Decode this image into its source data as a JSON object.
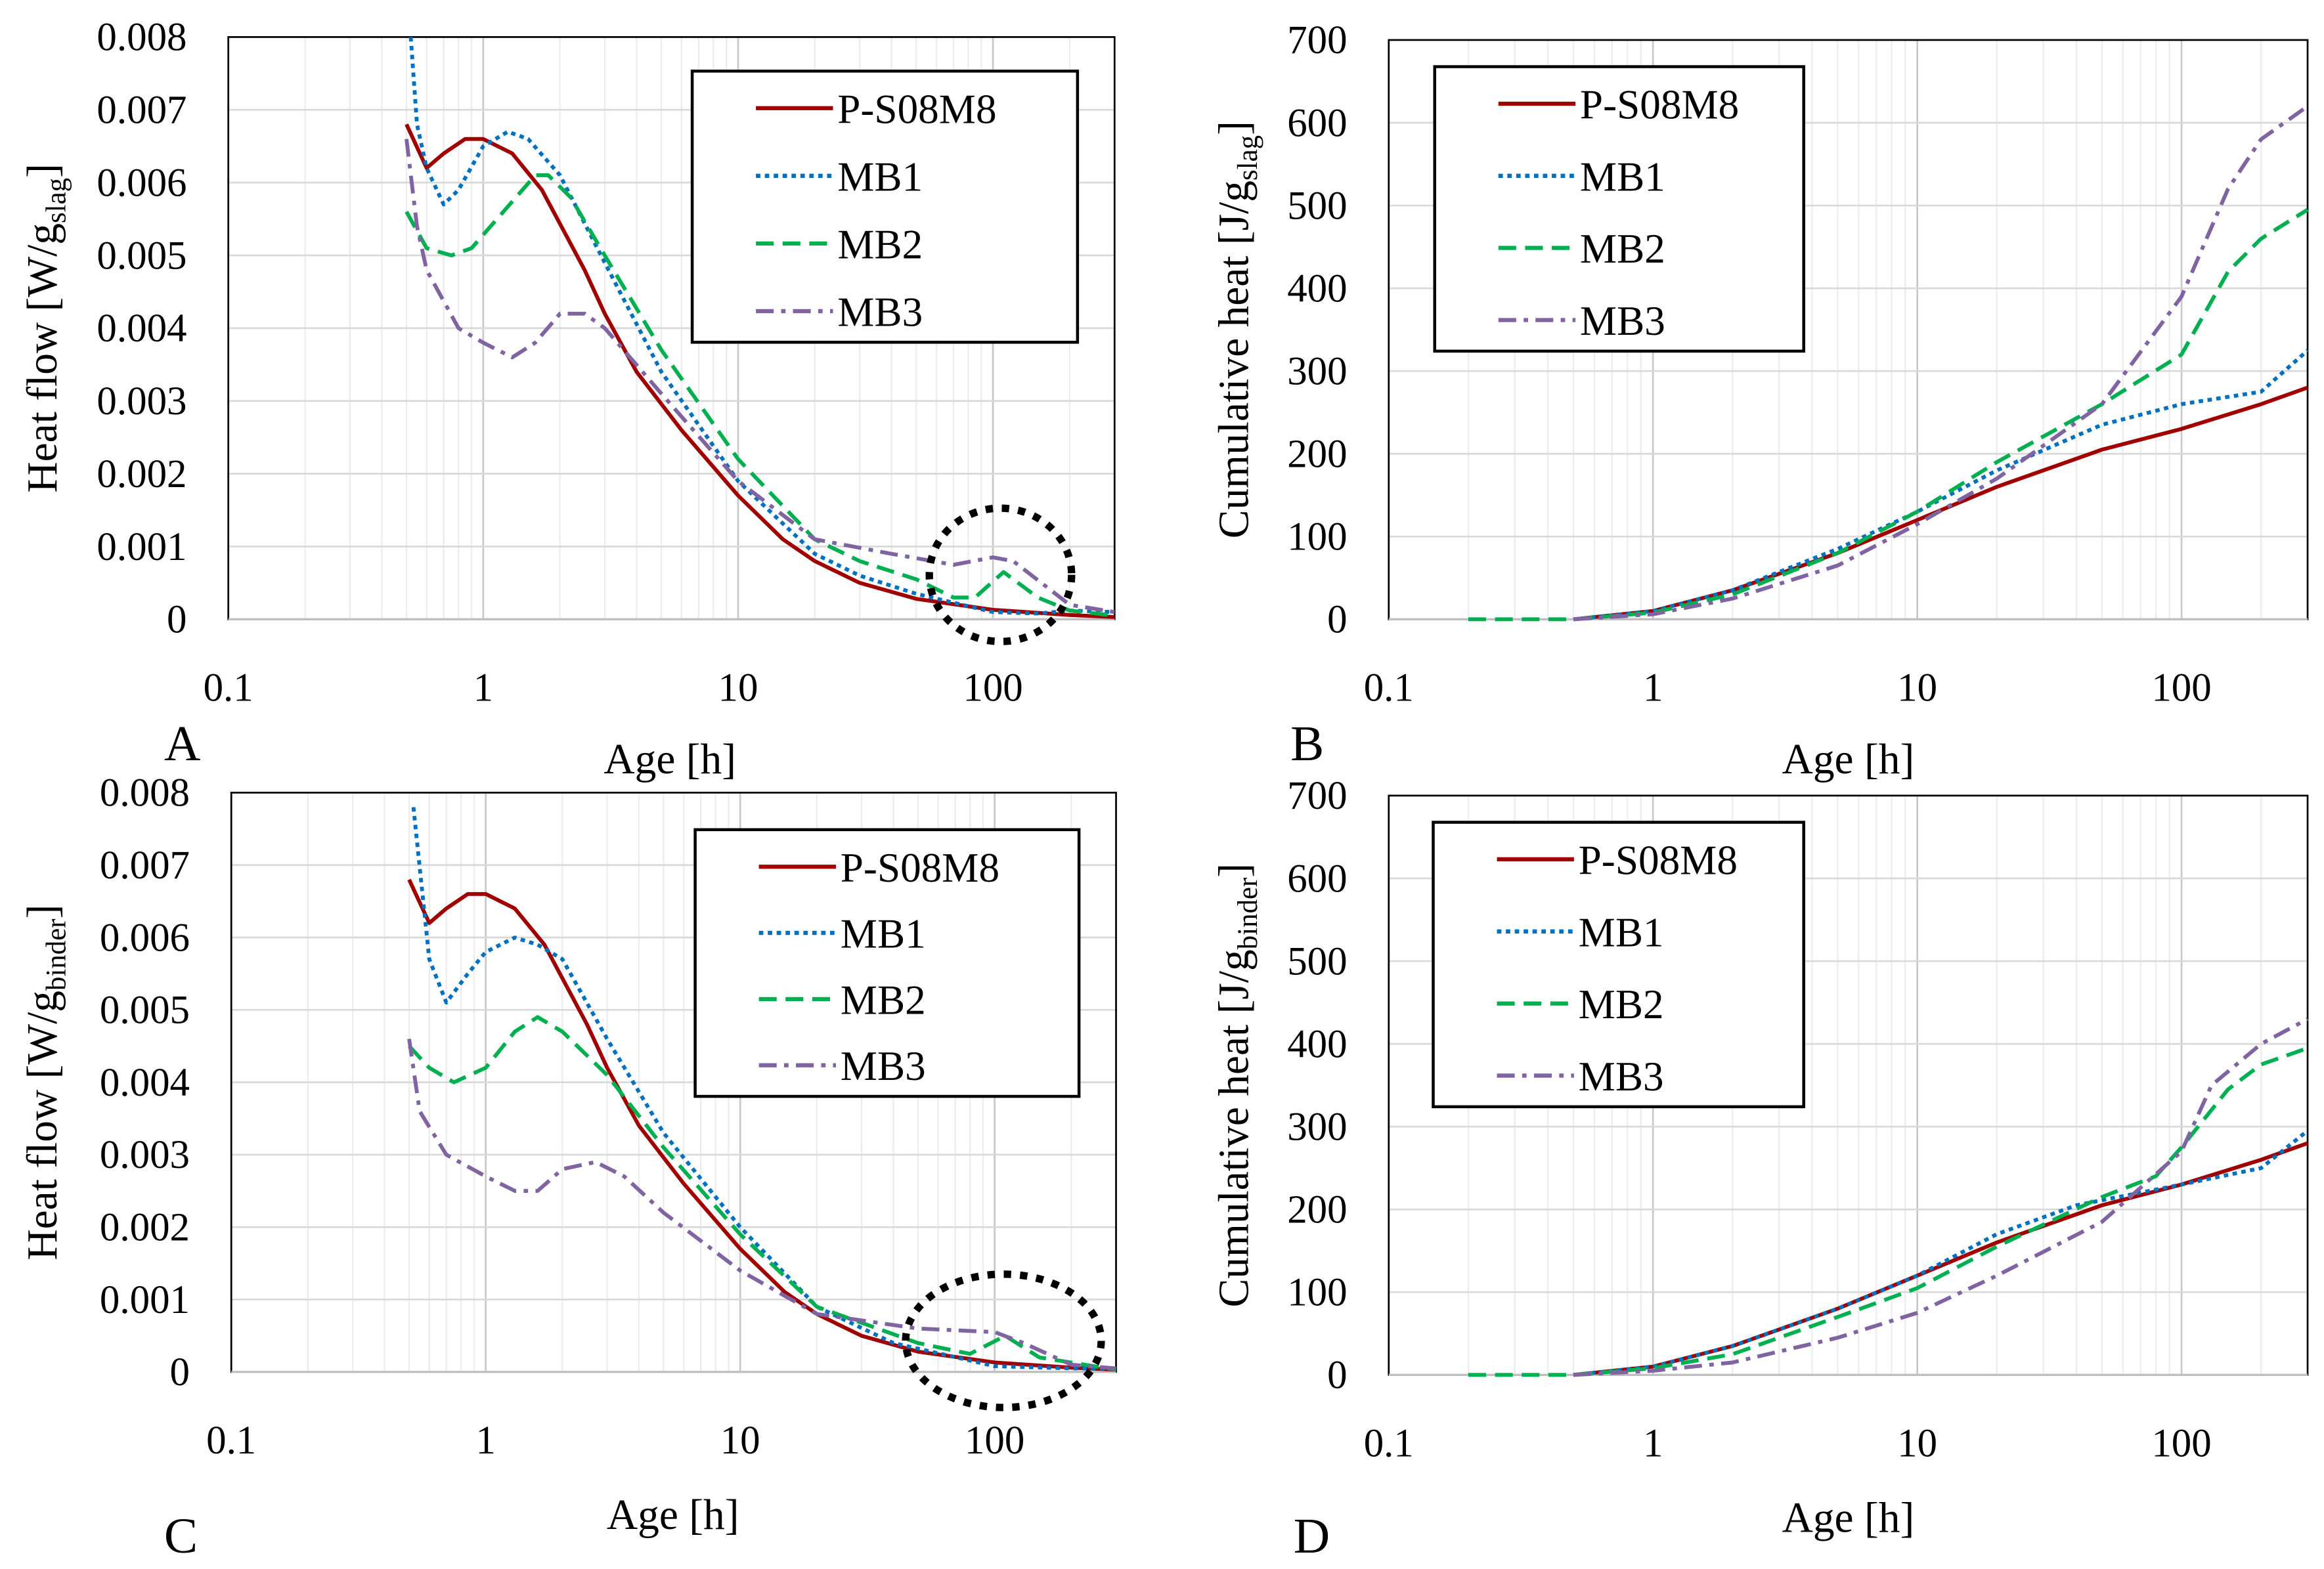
{
  "chart_data": [
    {
      "panel": "A",
      "type": "line",
      "xscale": "log",
      "xlabel": "Age [h]",
      "ylabel": {
        "prefix": "Heat flow [W/g",
        "sub": "slag",
        "suffix": "]"
      },
      "xlim": [
        0.1,
        300
      ],
      "ylim": [
        0,
        0.008
      ],
      "xticks": [
        "0.1",
        "1",
        "10",
        "100"
      ],
      "yticks": [
        "0",
        "0.001",
        "0.002",
        "0.003",
        "0.004",
        "0.005",
        "0.006",
        "0.007",
        "0.008"
      ],
      "legend_position": "top-right",
      "annotation": "dotted circle around ~100 h",
      "series": [
        {
          "name": "P-S08M8",
          "x": [
            0.5,
            0.6,
            0.7,
            0.85,
            1,
            1.3,
            1.7,
            2.5,
            3,
            4,
            6,
            10,
            15,
            20,
            30,
            50,
            100,
            200,
            300
          ],
          "y": [
            0.0068,
            0.0062,
            0.0064,
            0.0066,
            0.0066,
            0.0064,
            0.0059,
            0.0048,
            0.0042,
            0.0034,
            0.0026,
            0.0017,
            0.0011,
            0.0008,
            0.0005,
            0.00028,
            0.00013,
            6e-05,
            3e-05
          ]
        },
        {
          "name": "MB1",
          "x": [
            0.52,
            0.55,
            0.6,
            0.7,
            0.8,
            1,
            1.25,
            1.5,
            2,
            3,
            5,
            10,
            20,
            30,
            50,
            100,
            150,
            200,
            300
          ],
          "y": [
            0.008,
            0.0068,
            0.0062,
            0.0057,
            0.0059,
            0.0065,
            0.0067,
            0.0066,
            0.0061,
            0.0049,
            0.0034,
            0.0019,
            0.0009,
            0.0006,
            0.00035,
            0.0001,
            8e-05,
            0.00012,
            0.0001
          ]
        },
        {
          "name": "MB2",
          "x": [
            0.5,
            0.6,
            0.75,
            0.9,
            1.2,
            1.6,
            1.8,
            2.2,
            3,
            5,
            10,
            20,
            30,
            50,
            70,
            85,
            110,
            150,
            200,
            300
          ],
          "y": [
            0.0056,
            0.0051,
            0.005,
            0.0051,
            0.0056,
            0.0061,
            0.0061,
            0.0058,
            0.005,
            0.0037,
            0.0022,
            0.0011,
            0.0008,
            0.00055,
            0.0003,
            0.0003,
            0.00065,
            0.0003,
            0.00012,
            5e-05
          ]
        },
        {
          "name": "MB3",
          "x": [
            0.5,
            0.55,
            0.6,
            0.8,
            1,
            1.3,
            1.6,
            2,
            2.5,
            3,
            5,
            10,
            20,
            40,
            70,
            100,
            120,
            200,
            300
          ],
          "y": [
            0.0066,
            0.0054,
            0.0048,
            0.004,
            0.0038,
            0.0036,
            0.0038,
            0.0042,
            0.0042,
            0.004,
            0.0031,
            0.0019,
            0.0011,
            0.0009,
            0.00075,
            0.00085,
            0.0008,
            0.0002,
            0.0001
          ]
        }
      ]
    },
    {
      "panel": "B",
      "type": "line",
      "xscale": "log",
      "xlabel": "Age [h]",
      "ylabel": {
        "prefix": "Cumulative heat [J/g",
        "sub": "slag",
        "suffix": "]"
      },
      "xlim": [
        0.1,
        300
      ],
      "ylim": [
        0,
        700
      ],
      "xticks": [
        "0.1",
        "1",
        "10",
        "100"
      ],
      "yticks": [
        "0",
        "100",
        "200",
        "300",
        "400",
        "500",
        "600",
        "700"
      ],
      "legend_position": "top-left",
      "series": [
        {
          "name": "P-S08M8",
          "x": [
            0.5,
            1,
            2,
            5,
            10,
            20,
            50,
            100,
            200,
            300
          ],
          "y": [
            0,
            10,
            35,
            80,
            120,
            160,
            205,
            230,
            260,
            280
          ]
        },
        {
          "name": "MB1",
          "x": [
            0.5,
            1,
            2,
            5,
            10,
            20,
            50,
            100,
            200,
            300
          ],
          "y": [
            0,
            10,
            35,
            85,
            130,
            180,
            235,
            260,
            275,
            325
          ]
        },
        {
          "name": "MB2",
          "x": [
            0.2,
            0.5,
            1,
            2,
            5,
            10,
            20,
            50,
            100,
            150,
            200,
            300
          ],
          "y": [
            0,
            0,
            8,
            30,
            80,
            130,
            190,
            260,
            320,
            420,
            460,
            495
          ]
        },
        {
          "name": "MB3",
          "x": [
            0.5,
            1,
            2,
            5,
            10,
            20,
            50,
            100,
            150,
            200,
            300
          ],
          "y": [
            0,
            6,
            25,
            65,
            115,
            170,
            260,
            390,
            520,
            580,
            620
          ]
        }
      ]
    },
    {
      "panel": "C",
      "type": "line",
      "xscale": "log",
      "xlabel": "Age [h]",
      "ylabel": {
        "prefix": "Heat flow [W/g",
        "sub": "binder",
        "suffix": "]"
      },
      "xlim": [
        0.1,
        300
      ],
      "ylim": [
        0,
        0.008
      ],
      "xticks": [
        "0.1",
        "1",
        "10",
        "100"
      ],
      "yticks": [
        "0",
        "0.001",
        "0.002",
        "0.003",
        "0.004",
        "0.005",
        "0.006",
        "0.007",
        "0.008"
      ],
      "legend_position": "top-right",
      "annotation": "dotted circle around ~100 h",
      "series": [
        {
          "name": "P-S08M8",
          "x": [
            0.5,
            0.6,
            0.7,
            0.85,
            1,
            1.3,
            1.7,
            2.5,
            3,
            4,
            6,
            10,
            15,
            20,
            30,
            50,
            100,
            200,
            300
          ],
          "y": [
            0.0068,
            0.0062,
            0.0064,
            0.0066,
            0.0066,
            0.0064,
            0.0059,
            0.0048,
            0.0042,
            0.0034,
            0.0026,
            0.0017,
            0.0011,
            0.0008,
            0.0005,
            0.00028,
            0.00013,
            6e-05,
            3e-05
          ]
        },
        {
          "name": "MB1",
          "x": [
            0.52,
            0.6,
            0.7,
            0.85,
            1,
            1.3,
            1.6,
            2,
            3,
            5,
            10,
            20,
            40,
            100,
            200,
            300
          ],
          "y": [
            0.0078,
            0.0057,
            0.0051,
            0.0055,
            0.0058,
            0.006,
            0.0059,
            0.0057,
            0.0046,
            0.0033,
            0.002,
            0.0009,
            0.0004,
            8e-05,
            5e-05,
            4e-05
          ]
        },
        {
          "name": "MB2",
          "x": [
            0.5,
            0.6,
            0.75,
            1,
            1.3,
            1.6,
            2,
            3,
            5,
            10,
            20,
            50,
            80,
            110,
            150,
            300
          ],
          "y": [
            0.0045,
            0.0042,
            0.004,
            0.0042,
            0.0047,
            0.0049,
            0.0047,
            0.0041,
            0.0031,
            0.0019,
            0.0009,
            0.0004,
            0.00025,
            0.0005,
            0.0002,
            3e-05
          ]
        },
        {
          "name": "MB3",
          "x": [
            0.5,
            0.55,
            0.7,
            1,
            1.3,
            1.6,
            2,
            2.7,
            3.5,
            5,
            10,
            20,
            50,
            100,
            130,
            200,
            300
          ],
          "y": [
            0.0046,
            0.0036,
            0.003,
            0.0027,
            0.0025,
            0.0025,
            0.0028,
            0.0029,
            0.0027,
            0.0022,
            0.0014,
            0.0008,
            0.0006,
            0.00055,
            0.0004,
            0.0001,
            5e-05
          ]
        }
      ]
    },
    {
      "panel": "D",
      "type": "line",
      "xscale": "log",
      "xlabel": "Age [h]",
      "ylabel": {
        "prefix": "Cumulative heat [J/g",
        "sub": "binder",
        "suffix": "]"
      },
      "xlim": [
        0.1,
        300
      ],
      "ylim": [
        0,
        700
      ],
      "xticks": [
        "0.1",
        "1",
        "10",
        "100"
      ],
      "yticks": [
        "0",
        "100",
        "200",
        "300",
        "400",
        "500",
        "600",
        "700"
      ],
      "legend_position": "top-left",
      "series": [
        {
          "name": "P-S08M8",
          "x": [
            0.5,
            1,
            2,
            5,
            10,
            20,
            50,
            100,
            200,
            300
          ],
          "y": [
            0,
            10,
            35,
            80,
            120,
            160,
            205,
            230,
            260,
            280
          ]
        },
        {
          "name": "MB1",
          "x": [
            0.5,
            1,
            2,
            5,
            10,
            20,
            40,
            100,
            200,
            300
          ],
          "y": [
            0,
            10,
            35,
            80,
            120,
            170,
            205,
            230,
            250,
            295
          ]
        },
        {
          "name": "MB2",
          "x": [
            0.2,
            0.5,
            1,
            2,
            5,
            10,
            20,
            50,
            80,
            100,
            150,
            200,
            300
          ],
          "y": [
            0,
            0,
            8,
            25,
            70,
            105,
            155,
            215,
            240,
            275,
            345,
            375,
            395
          ]
        },
        {
          "name": "MB3",
          "x": [
            0.5,
            1,
            2,
            5,
            10,
            20,
            50,
            100,
            130,
            200,
            300
          ],
          "y": [
            0,
            5,
            15,
            45,
            75,
            120,
            185,
            270,
            350,
            400,
            430
          ]
        }
      ]
    }
  ],
  "series_colors": {
    "P-S08M8": "#a00000",
    "MB1": "#0070c0",
    "MB2": "#00b050",
    "MB3": "#8064a2"
  },
  "series_dash": {
    "P-S08M8": "none",
    "MB1": "dot",
    "MB2": "dash",
    "MB3": "dashdot"
  }
}
